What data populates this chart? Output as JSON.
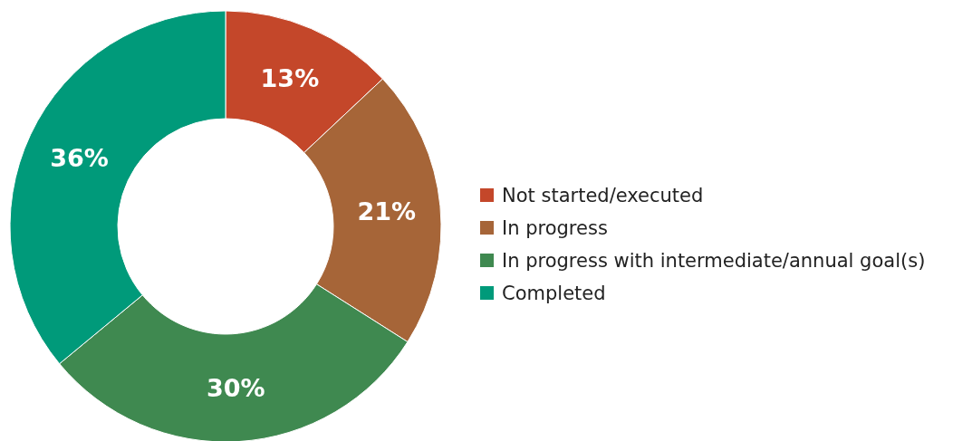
{
  "chart_data": {
    "type": "donut",
    "categories": [
      "Not started/executed",
      "In progress",
      "In progress with intermediate/annual goal(s)",
      "Completed"
    ],
    "values": [
      13,
      21,
      30,
      36
    ],
    "colors": [
      "#c4472a",
      "#a66538",
      "#3f8950",
      "#009a7a"
    ],
    "value_labels": [
      "13%",
      "21%",
      "30%",
      "36%"
    ],
    "legend": "right"
  }
}
